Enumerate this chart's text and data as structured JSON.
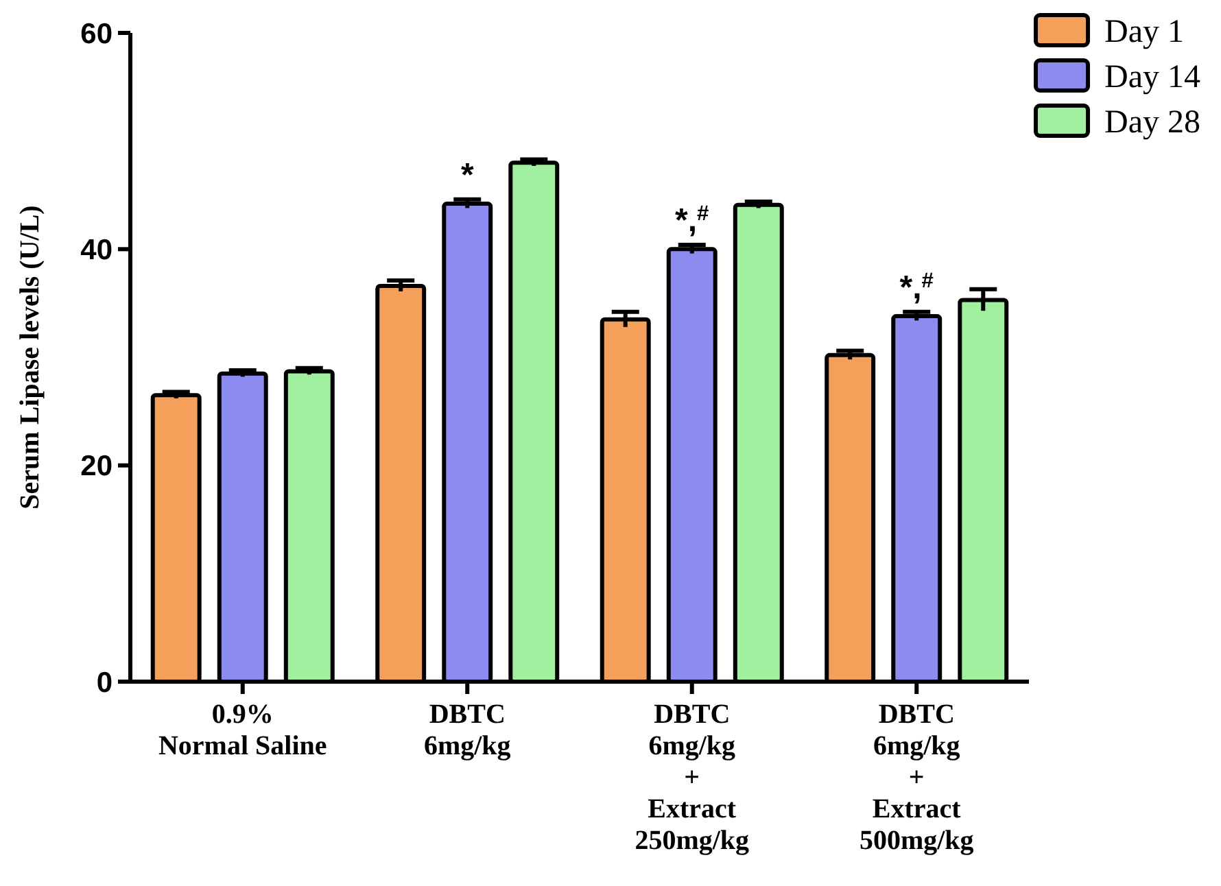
{
  "chart_data": {
    "type": "bar",
    "ylabel": "Serum Lipase levels (U/L)",
    "categories": [
      "0.9%\nNormal Saline",
      "DBTC\n6mg/kg",
      "DBTC\n6mg/kg\n+\nExtract\n250mg/kg",
      "DBTC\n6mg/kg\n+\nExtract\n500mg/kg"
    ],
    "series": [
      {
        "name": "Day 1",
        "color": "#f4a05a",
        "values": [
          26.5,
          36.6,
          33.5,
          30.2
        ],
        "errors": [
          0.3,
          0.5,
          0.7,
          0.4
        ]
      },
      {
        "name": "Day 14",
        "color": "#8c8cf0",
        "values": [
          28.5,
          44.2,
          40.0,
          33.8
        ],
        "errors": [
          0.3,
          0.4,
          0.4,
          0.4
        ]
      },
      {
        "name": "Day 28",
        "color": "#a0f0a0",
        "values": [
          28.7,
          48.0,
          44.1,
          35.3
        ],
        "errors": [
          0.3,
          0.3,
          0.3,
          1.0
        ]
      }
    ],
    "ylim": [
      0,
      60
    ],
    "yticks": [
      0,
      20,
      40,
      60
    ],
    "grid": false,
    "legend": "top right",
    "annotations": [
      {
        "text": "*",
        "x": "DBTC\n6mg/kg",
        "y": 44.6
      },
      {
        "text": "*,$^{#}$",
        "x": "DBTC\n6mg/kg\n+\nExtract\n250mg/kg",
        "y": 40.4
      },
      {
        "text": "*,$^{#}$",
        "x": "DBTC\n6mg/kg\n+\nExtract\n500mg/kg",
        "y": 34.2
      }
    ]
  }
}
